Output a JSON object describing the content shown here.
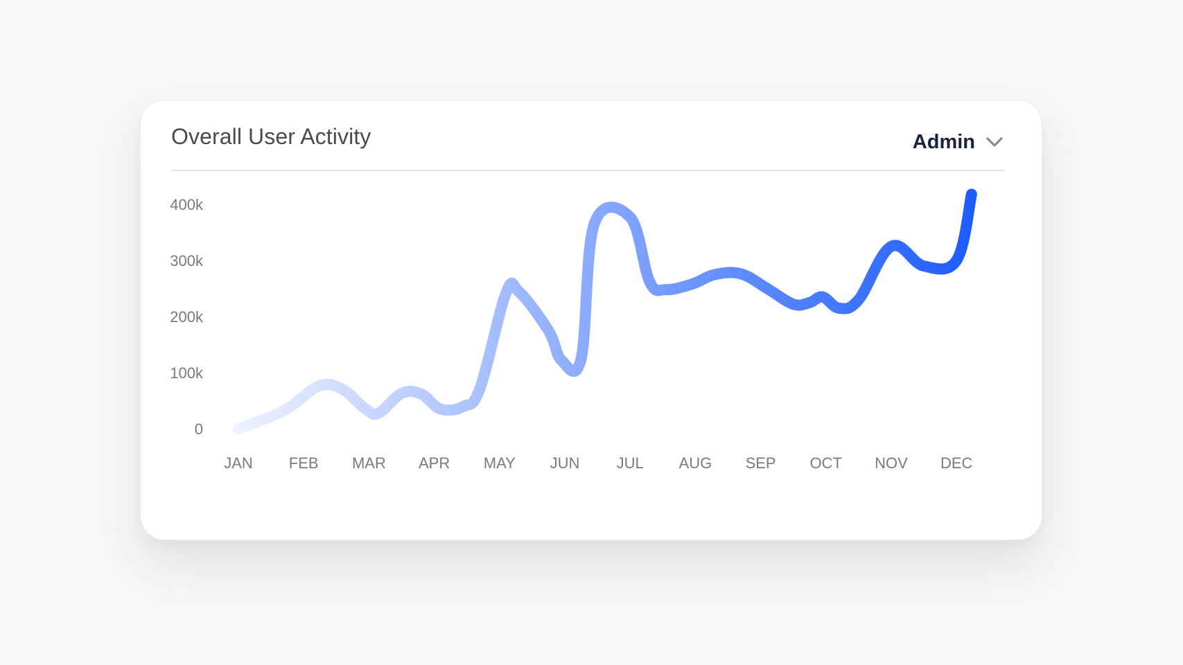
{
  "card": {
    "title": "Overall User Activity",
    "dropdown": {
      "selected": "Admin",
      "icon": "chevron-down-icon"
    }
  },
  "colors": {
    "line_start": "#eef2ff",
    "line_end": "#1d5cff",
    "title": "#4a4a4e",
    "dropdown_text": "#1b2240"
  },
  "chart_data": {
    "type": "line",
    "title": "Overall User Activity",
    "xlabel": "",
    "ylabel": "",
    "categories": [
      "JAN",
      "FEB",
      "MAR",
      "APR",
      "MAY",
      "JUN",
      "JUL",
      "AUG",
      "SEP",
      "OCT",
      "NOV",
      "DEC"
    ],
    "y_ticks": [
      "0",
      "100k",
      "200k",
      "300k",
      "400k"
    ],
    "ylim": [
      0,
      400000
    ],
    "grid": false,
    "legend": "none",
    "series": [
      {
        "x": [
          0,
          0.5,
          0.8,
          1.25,
          1.6,
          1.95,
          2.15,
          2.5,
          2.8,
          3.1,
          3.45,
          3.7,
          4.1,
          4.3,
          4.75,
          4.95,
          5.25,
          5.45,
          6.0,
          6.3,
          6.55,
          6.95,
          7.3,
          7.7,
          8.1,
          8.5,
          8.75,
          8.95,
          9.2,
          9.5,
          10.0,
          10.5,
          11.0,
          11.23
        ],
        "y": [
          0,
          22000,
          40000,
          77000,
          70000,
          35000,
          28000,
          63000,
          62000,
          35000,
          40000,
          72000,
          242000,
          244000,
          175000,
          122000,
          125000,
          365000,
          377000,
          262000,
          248000,
          258000,
          275000,
          276000,
          250000,
          222000,
          225000,
          235000,
          215000,
          230000,
          325000,
          290000,
          300000,
          418000
        ]
      }
    ]
  }
}
